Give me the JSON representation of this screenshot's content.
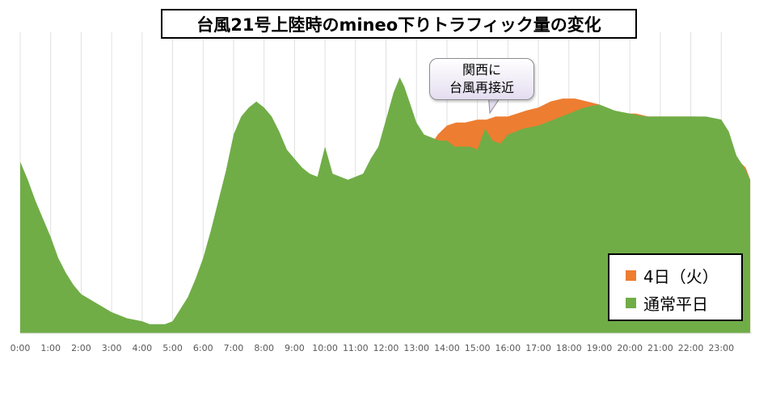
{
  "title": "台風21号上陸時のmineo下りトラフィック量の変化",
  "callout": {
    "line1": "関西に",
    "line2": "台風再接近"
  },
  "legend": [
    {
      "label": "4日（火）",
      "color": "#ed7d31"
    },
    {
      "label": "通常平日",
      "color": "#70ad47"
    }
  ],
  "chart_data": {
    "type": "area",
    "title": "台風21号上陸時のmineo下りトラフィック量の変化",
    "x_tick_labels": [
      "0:00",
      "1:00",
      "2:00",
      "3:00",
      "4:00",
      "5:00",
      "6:00",
      "7:00",
      "8:00",
      "9:00",
      "10:00",
      "11:00",
      "12:00",
      "13:00",
      "14:00",
      "15:00",
      "16:00",
      "17:00",
      "18:00",
      "19:00",
      "20:00",
      "21:00",
      "22:00",
      "23:00"
    ],
    "xlim": [
      0,
      24
    ],
    "ylim": [
      0,
      100
    ],
    "y_axis_labels_shown": false,
    "grid": "vertical",
    "legend_position": "bottom-right",
    "series": [
      {
        "name": "4日（火）",
        "color": "#ed7d31",
        "x": [
          13.5,
          13.7,
          14.0,
          14.3,
          14.6,
          15.0,
          15.3,
          15.6,
          16.0,
          16.3,
          16.6,
          17.0,
          17.4,
          17.8,
          18.2,
          18.6,
          19.0,
          19.4,
          19.8,
          20.2,
          20.6,
          21.0,
          21.4,
          21.8,
          22.2,
          22.6,
          23.0,
          23.4,
          23.8,
          23.95
        ],
        "y": [
          63,
          66,
          69,
          70,
          70,
          71,
          71,
          72,
          72,
          73,
          74,
          75,
          77,
          78,
          78,
          77,
          76,
          74,
          73,
          73,
          72,
          72,
          72,
          72,
          72,
          71,
          67,
          59,
          55,
          51
        ]
      },
      {
        "name": "通常平日",
        "color": "#70ad47",
        "x": [
          0,
          0.25,
          0.5,
          0.75,
          1.0,
          1.25,
          1.5,
          1.75,
          2.0,
          2.5,
          3.0,
          3.5,
          4.0,
          4.25,
          4.5,
          4.75,
          5.0,
          5.25,
          5.5,
          5.75,
          6.0,
          6.25,
          6.5,
          6.75,
          7.0,
          7.25,
          7.5,
          7.75,
          8.0,
          8.25,
          8.5,
          8.75,
          9.0,
          9.25,
          9.5,
          9.75,
          10.0,
          10.25,
          10.5,
          10.75,
          11.0,
          11.25,
          11.5,
          11.75,
          12.0,
          12.25,
          12.45,
          12.6,
          12.8,
          13.0,
          13.25,
          13.5,
          13.75,
          14.0,
          14.25,
          14.5,
          14.75,
          15.0,
          15.25,
          15.5,
          15.75,
          16.0,
          16.5,
          17.0,
          17.5,
          18.0,
          18.5,
          19.0,
          19.5,
          20.0,
          20.5,
          21.0,
          21.5,
          22.0,
          22.5,
          23.0,
          23.25,
          23.5,
          23.75,
          23.95
        ],
        "y": [
          57,
          51,
          44,
          38,
          32,
          25,
          20,
          16,
          13,
          10,
          7,
          5,
          4,
          3,
          3,
          3,
          4,
          8,
          12,
          18,
          25,
          34,
          44,
          54,
          66,
          72,
          75,
          77,
          75,
          72,
          67,
          61,
          58,
          55,
          53,
          52,
          62,
          53,
          52,
          51,
          52,
          53,
          58,
          62,
          71,
          80,
          85,
          82,
          76,
          70,
          66,
          65,
          64,
          64,
          62,
          62,
          62,
          61,
          68,
          64,
          63,
          66,
          68,
          69,
          71,
          73,
          75,
          76,
          74,
          73,
          72,
          72,
          72,
          72,
          72,
          71,
          67,
          59,
          55,
          51
        ]
      }
    ]
  }
}
